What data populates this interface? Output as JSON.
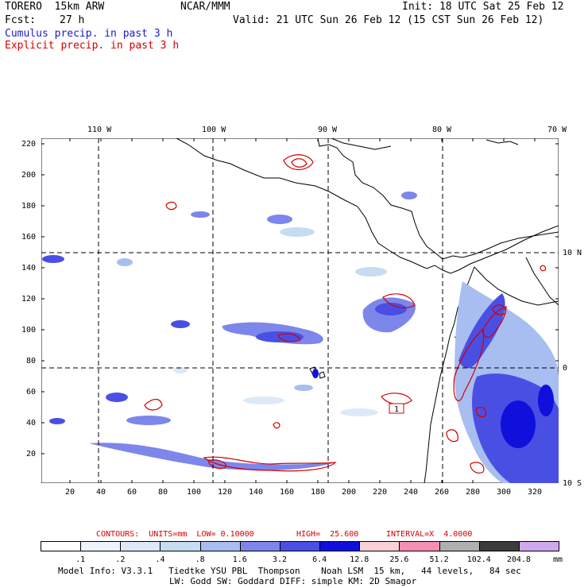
{
  "header": {
    "model": "TORERO  15km ARW",
    "org": "NCAR/MMM",
    "init": "Init: 18 UTC Sat 25 Feb 12",
    "fcst_label": "Fcst:",
    "fcst_value": "27 h",
    "valid": "Valid: 21 UTC Sun 26 Feb 12 (15 CST Sun 26 Feb 12)",
    "legend_cumulus": "Cumulus precip. in past 3 h",
    "legend_explicit": "Explicit precip. in past 3 h"
  },
  "map": {
    "top_labels": [
      "110 W",
      "100 W",
      "90 W",
      "80 W",
      "70 W"
    ],
    "right_labels": [
      "10 N",
      "0",
      "10 S"
    ],
    "left_ticks": [
      "220",
      "200",
      "180",
      "160",
      "140",
      "120",
      "100",
      "80",
      "60",
      "40",
      "20"
    ],
    "bottom_ticks": [
      "20",
      "40",
      "60",
      "80",
      "100",
      "120",
      "140",
      "160",
      "180",
      "200",
      "220",
      "240",
      "260",
      "280",
      "300",
      "320"
    ],
    "explicit_label": "1"
  },
  "contours": {
    "units": "CONTOURS:  UNITS=mm  LOW= 0.10000",
    "high": "HIGH=  25.600",
    "interval": "INTERVAL=X  4.0000"
  },
  "colorbar": {
    "labels": [
      ".1",
      ".2",
      ".4",
      ".8",
      "1.6",
      "3.2",
      "6.4",
      "12.8",
      "25.6",
      "51.2",
      "102.4",
      "204.8"
    ],
    "unit": "mm",
    "colors": [
      "#ffffff",
      "#eef4fb",
      "#dde9f7",
      "#c6dcf2",
      "#a8bdf0",
      "#7d86eb",
      "#4a4fe4",
      "#1010dc",
      "#f8d0d6",
      "#f58fb3",
      "#b0b0b0",
      "#3c3c3c",
      "#d0a8f0"
    ]
  },
  "footer": {
    "line1": "Model Info: V3.3.1   Tiedtke YSU PBL  Thompson    Noah LSM  15 km,   44 levels,   84 sec",
    "line2": "LW: Godd SW: Goddard DIFF: simple KM: 2D Smagor"
  }
}
